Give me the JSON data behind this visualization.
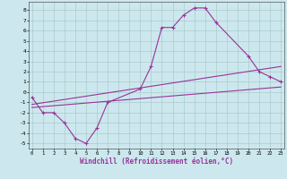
{
  "xlabel": "Windchill (Refroidissement éolien,°C)",
  "bg_color": "#cce8ee",
  "line_color": "#993399",
  "grid_color": "#aacccc",
  "x_ticks": [
    0,
    1,
    2,
    3,
    4,
    5,
    6,
    7,
    8,
    9,
    10,
    11,
    12,
    13,
    14,
    15,
    16,
    17,
    18,
    19,
    20,
    21,
    22,
    23
  ],
  "y_ticks": [
    -5,
    -4,
    -3,
    -2,
    -1,
    0,
    1,
    2,
    3,
    4,
    5,
    6,
    7,
    8
  ],
  "xlim": [
    -0.3,
    23.3
  ],
  "ylim": [
    -5.5,
    8.8
  ],
  "line1_x": [
    0,
    1,
    2,
    3,
    4,
    5,
    6,
    7,
    10,
    11,
    12,
    13,
    14,
    15,
    16,
    17,
    20,
    21,
    22,
    23
  ],
  "line1_y": [
    -0.5,
    -2.0,
    -2.0,
    -3.0,
    -4.5,
    -5.0,
    -3.5,
    -1.0,
    0.3,
    2.5,
    6.3,
    6.3,
    7.5,
    8.2,
    8.2,
    6.8,
    3.5,
    2.0,
    1.5,
    1.0
  ],
  "line2_x": [
    0,
    23
  ],
  "line2_y": [
    -1.5,
    0.5
  ],
  "line3_x": [
    0,
    23
  ],
  "line3_y": [
    -1.2,
    2.5
  ]
}
